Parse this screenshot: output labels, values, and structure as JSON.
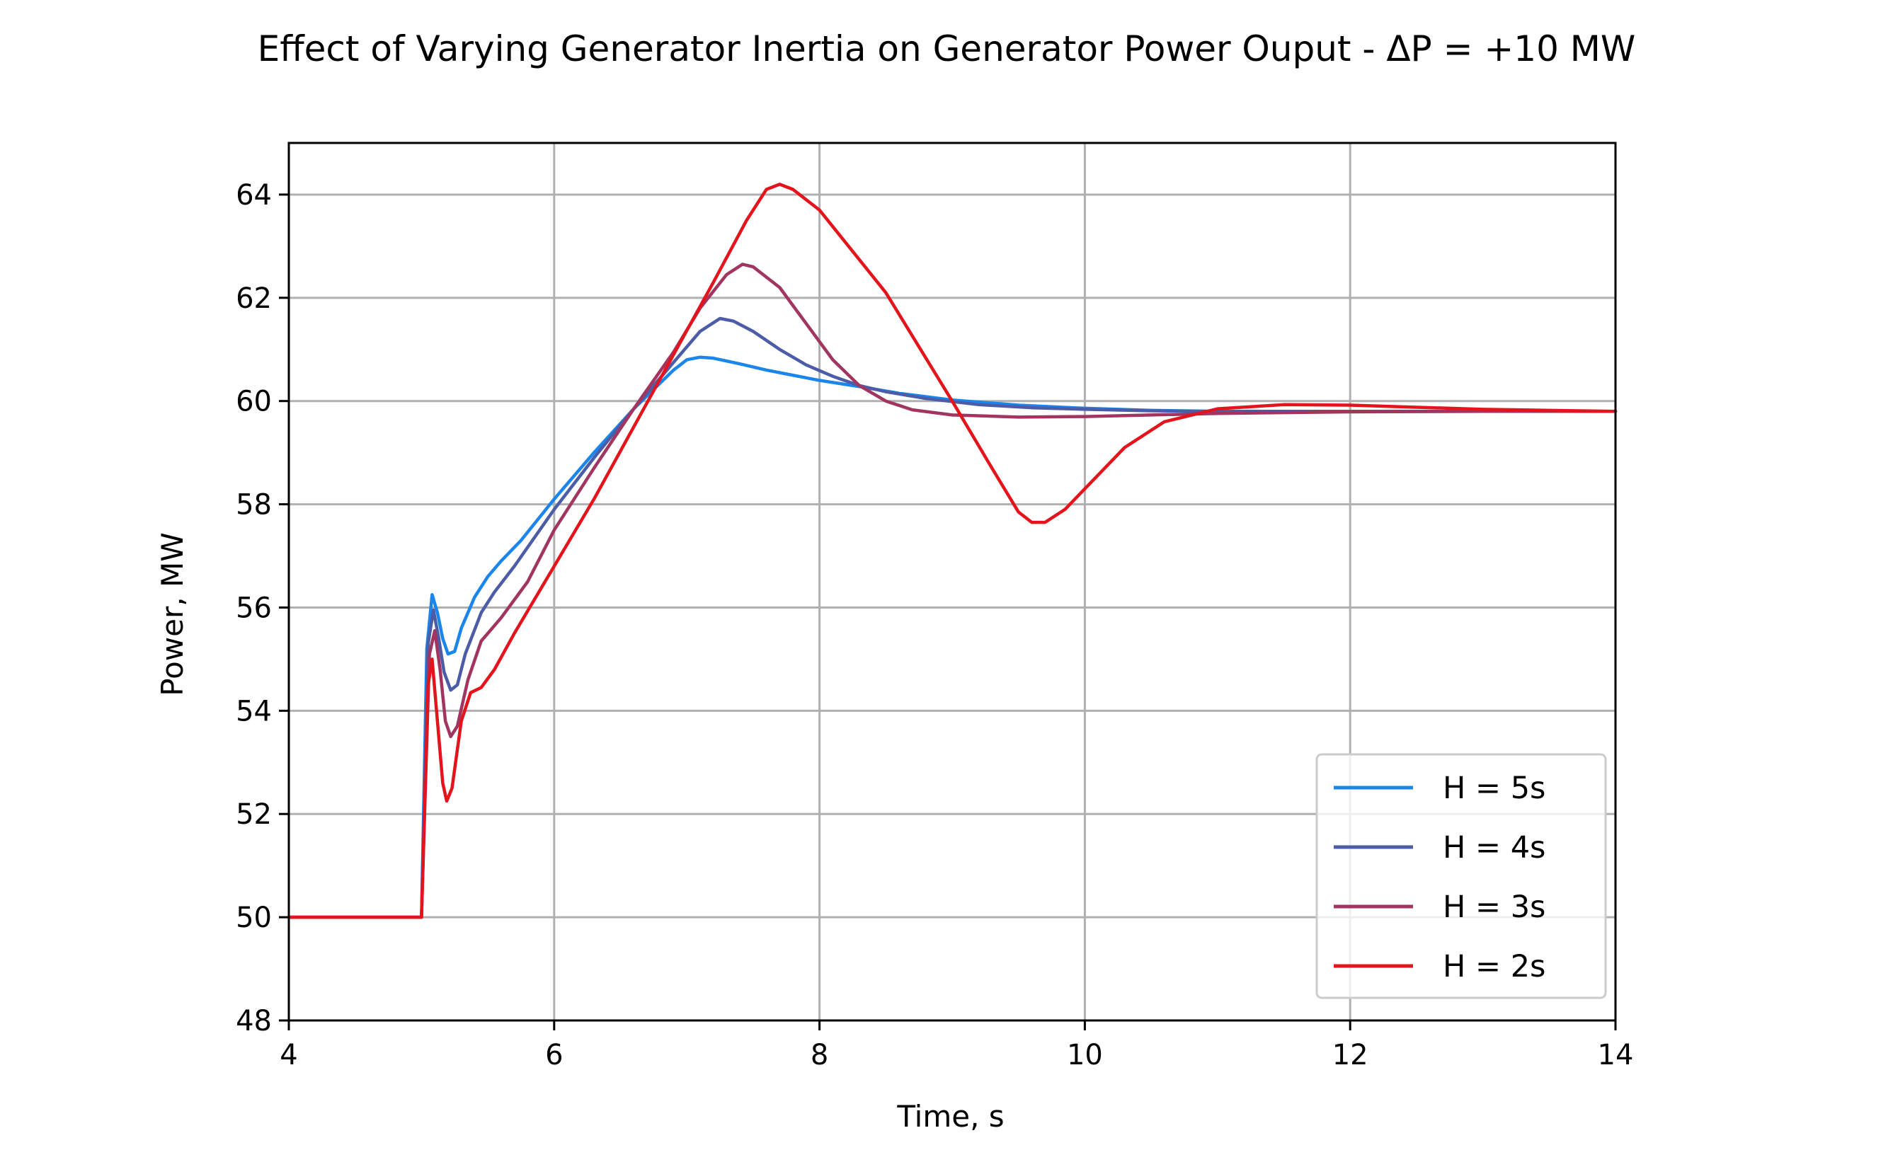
{
  "chart_data": {
    "type": "line",
    "title": "Effect of Varying Generator Inertia on Generator Power Ouput - ΔP = +10 MW",
    "xlabel": "Time, s",
    "ylabel": "Power, MW",
    "xlim": [
      4,
      14
    ],
    "ylim": [
      48,
      65
    ],
    "xticks": [
      4,
      6,
      8,
      10,
      12,
      14
    ],
    "yticks": [
      48,
      50,
      52,
      54,
      56,
      58,
      60,
      62,
      64
    ],
    "grid": true,
    "legend_position": "lower right",
    "series": [
      {
        "name": "H = 5s",
        "color": "#1a85ea",
        "points": [
          [
            4,
            50
          ],
          [
            4.995,
            50
          ],
          [
            5.0,
            50
          ],
          [
            5.04,
            55.2
          ],
          [
            5.08,
            56.25
          ],
          [
            5.12,
            55.9
          ],
          [
            5.16,
            55.4
          ],
          [
            5.2,
            55.1
          ],
          [
            5.25,
            55.15
          ],
          [
            5.3,
            55.6
          ],
          [
            5.4,
            56.2
          ],
          [
            5.5,
            56.6
          ],
          [
            5.6,
            56.9
          ],
          [
            5.75,
            57.3
          ],
          [
            6.0,
            58.1
          ],
          [
            6.3,
            59.0
          ],
          [
            6.6,
            59.85
          ],
          [
            6.9,
            60.6
          ],
          [
            7.0,
            60.8
          ],
          [
            7.1,
            60.85
          ],
          [
            7.2,
            60.83
          ],
          [
            7.4,
            60.72
          ],
          [
            7.6,
            60.6
          ],
          [
            7.8,
            60.5
          ],
          [
            8.0,
            60.4
          ],
          [
            8.3,
            60.28
          ],
          [
            8.6,
            60.15
          ],
          [
            9.0,
            60.02
          ],
          [
            9.5,
            59.92
          ],
          [
            10.0,
            59.86
          ],
          [
            10.5,
            59.82
          ],
          [
            11.0,
            59.8
          ],
          [
            12.0,
            59.8
          ],
          [
            13.0,
            59.8
          ],
          [
            14.0,
            59.8
          ]
        ]
      },
      {
        "name": "H = 4s",
        "color": "#4c5ca6",
        "points": [
          [
            4,
            50
          ],
          [
            4.995,
            50
          ],
          [
            5.0,
            50
          ],
          [
            5.05,
            55.3
          ],
          [
            5.09,
            55.95
          ],
          [
            5.13,
            55.4
          ],
          [
            5.17,
            54.75
          ],
          [
            5.22,
            54.4
          ],
          [
            5.27,
            54.5
          ],
          [
            5.33,
            55.1
          ],
          [
            5.45,
            55.9
          ],
          [
            5.55,
            56.3
          ],
          [
            5.7,
            56.8
          ],
          [
            6.0,
            57.9
          ],
          [
            6.3,
            58.9
          ],
          [
            6.6,
            59.85
          ],
          [
            6.9,
            60.75
          ],
          [
            7.1,
            61.35
          ],
          [
            7.25,
            61.6
          ],
          [
            7.35,
            61.55
          ],
          [
            7.5,
            61.35
          ],
          [
            7.7,
            61.0
          ],
          [
            7.9,
            60.7
          ],
          [
            8.1,
            60.48
          ],
          [
            8.3,
            60.3
          ],
          [
            8.5,
            60.18
          ],
          [
            8.8,
            60.05
          ],
          [
            9.2,
            59.93
          ],
          [
            9.6,
            59.87
          ],
          [
            10.0,
            59.84
          ],
          [
            10.5,
            59.81
          ],
          [
            11.0,
            59.8
          ],
          [
            12.0,
            59.8
          ],
          [
            13.0,
            59.8
          ],
          [
            14.0,
            59.8
          ]
        ]
      },
      {
        "name": "H = 3s",
        "color": "#a23560",
        "points": [
          [
            4,
            50
          ],
          [
            4.995,
            50
          ],
          [
            5.0,
            50
          ],
          [
            5.06,
            55.1
          ],
          [
            5.1,
            55.55
          ],
          [
            5.14,
            54.8
          ],
          [
            5.18,
            53.8
          ],
          [
            5.22,
            53.5
          ],
          [
            5.27,
            53.7
          ],
          [
            5.35,
            54.6
          ],
          [
            5.45,
            55.35
          ],
          [
            5.6,
            55.8
          ],
          [
            5.8,
            56.5
          ],
          [
            6.0,
            57.5
          ],
          [
            6.3,
            58.7
          ],
          [
            6.6,
            59.85
          ],
          [
            6.9,
            60.95
          ],
          [
            7.1,
            61.8
          ],
          [
            7.3,
            62.45
          ],
          [
            7.42,
            62.65
          ],
          [
            7.5,
            62.6
          ],
          [
            7.7,
            62.2
          ],
          [
            7.9,
            61.5
          ],
          [
            8.1,
            60.8
          ],
          [
            8.3,
            60.3
          ],
          [
            8.5,
            60.0
          ],
          [
            8.7,
            59.83
          ],
          [
            9.0,
            59.73
          ],
          [
            9.5,
            59.69
          ],
          [
            10.0,
            59.7
          ],
          [
            10.5,
            59.73
          ],
          [
            11.0,
            59.76
          ],
          [
            12.0,
            59.79
          ],
          [
            13.0,
            59.8
          ],
          [
            14.0,
            59.8
          ]
        ]
      },
      {
        "name": "H = 2s",
        "color": "#e3141b",
        "points": [
          [
            4,
            50
          ],
          [
            4.995,
            50
          ],
          [
            5.0,
            50
          ],
          [
            5.05,
            54.5
          ],
          [
            5.08,
            55.0
          ],
          [
            5.12,
            53.8
          ],
          [
            5.16,
            52.6
          ],
          [
            5.19,
            52.25
          ],
          [
            5.23,
            52.5
          ],
          [
            5.3,
            53.8
          ],
          [
            5.37,
            54.35
          ],
          [
            5.45,
            54.45
          ],
          [
            5.55,
            54.8
          ],
          [
            5.7,
            55.5
          ],
          [
            6.0,
            56.8
          ],
          [
            6.3,
            58.1
          ],
          [
            6.6,
            59.5
          ],
          [
            6.9,
            60.9
          ],
          [
            7.2,
            62.3
          ],
          [
            7.45,
            63.5
          ],
          [
            7.6,
            64.1
          ],
          [
            7.7,
            64.2
          ],
          [
            7.8,
            64.1
          ],
          [
            8.0,
            63.7
          ],
          [
            8.5,
            62.1
          ],
          [
            9.0,
            60.0
          ],
          [
            9.3,
            58.7
          ],
          [
            9.5,
            57.85
          ],
          [
            9.6,
            57.65
          ],
          [
            9.7,
            57.65
          ],
          [
            9.85,
            57.9
          ],
          [
            10.0,
            58.3
          ],
          [
            10.3,
            59.1
          ],
          [
            10.6,
            59.6
          ],
          [
            11.0,
            59.85
          ],
          [
            11.5,
            59.93
          ],
          [
            12.0,
            59.92
          ],
          [
            12.5,
            59.88
          ],
          [
            13.0,
            59.84
          ],
          [
            13.5,
            59.82
          ],
          [
            14.0,
            59.8
          ]
        ]
      }
    ]
  }
}
